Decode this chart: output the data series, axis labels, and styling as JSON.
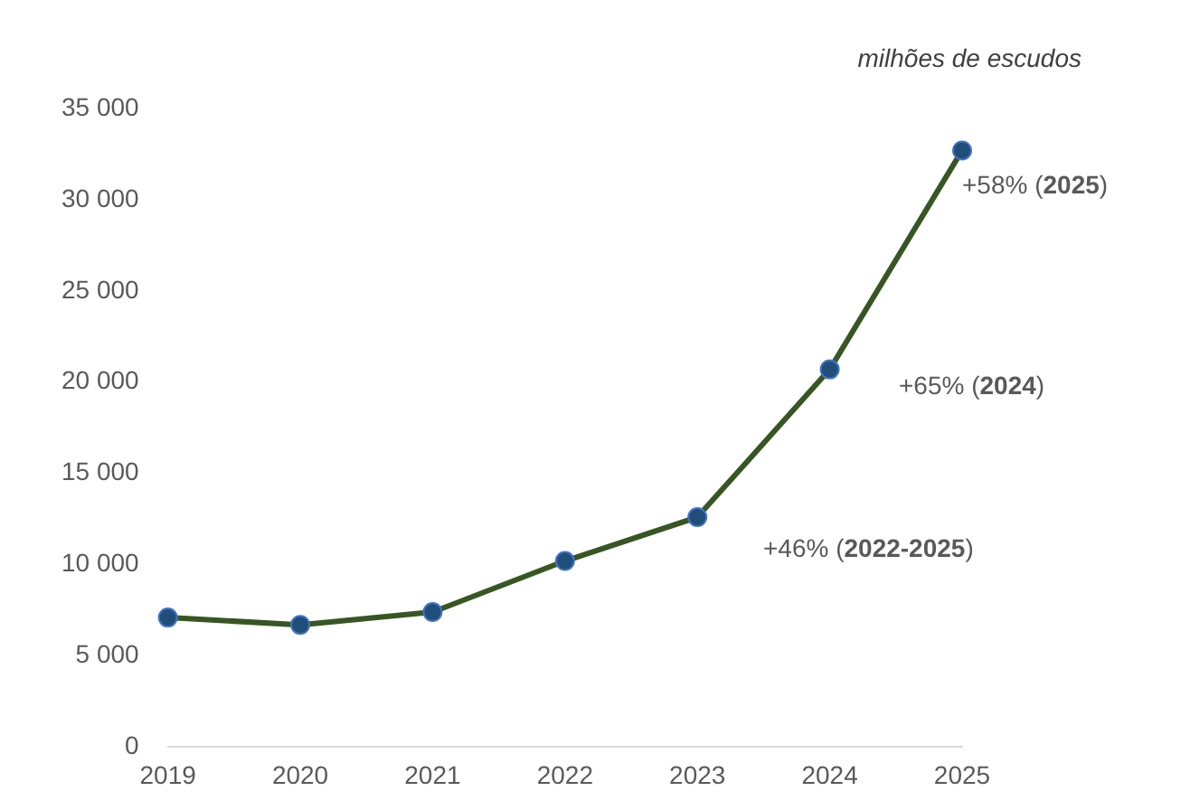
{
  "chart_data": {
    "type": "line",
    "ylabel": "milhões de escudos",
    "categories": [
      "2019",
      "2020",
      "2021",
      "2022",
      "2023",
      "2024",
      "2025"
    ],
    "series": [
      {
        "color": "#375623",
        "values": [
          7100,
          6700,
          7400,
          10200,
          12600,
          20700,
          32700
        ]
      }
    ],
    "ylim": [
      0,
      35000
    ],
    "yticks": [
      {
        "value": 0,
        "label": "0"
      },
      {
        "value": 5000,
        "label": "5 000"
      },
      {
        "value": 10000,
        "label": "10 000"
      },
      {
        "value": 15000,
        "label": "15 000"
      },
      {
        "value": 20000,
        "label": "20 000"
      },
      {
        "value": 25000,
        "label": "25 000"
      },
      {
        "value": 30000,
        "label": "30 000"
      },
      {
        "value": 35000,
        "label": "35 000"
      }
    ],
    "annotations": [
      "+58% (2025)",
      "+65% (2024)",
      "+46% (2022-2025)"
    ],
    "grid": false,
    "legend": false,
    "marker": "circle",
    "line_style": "solid"
  }
}
